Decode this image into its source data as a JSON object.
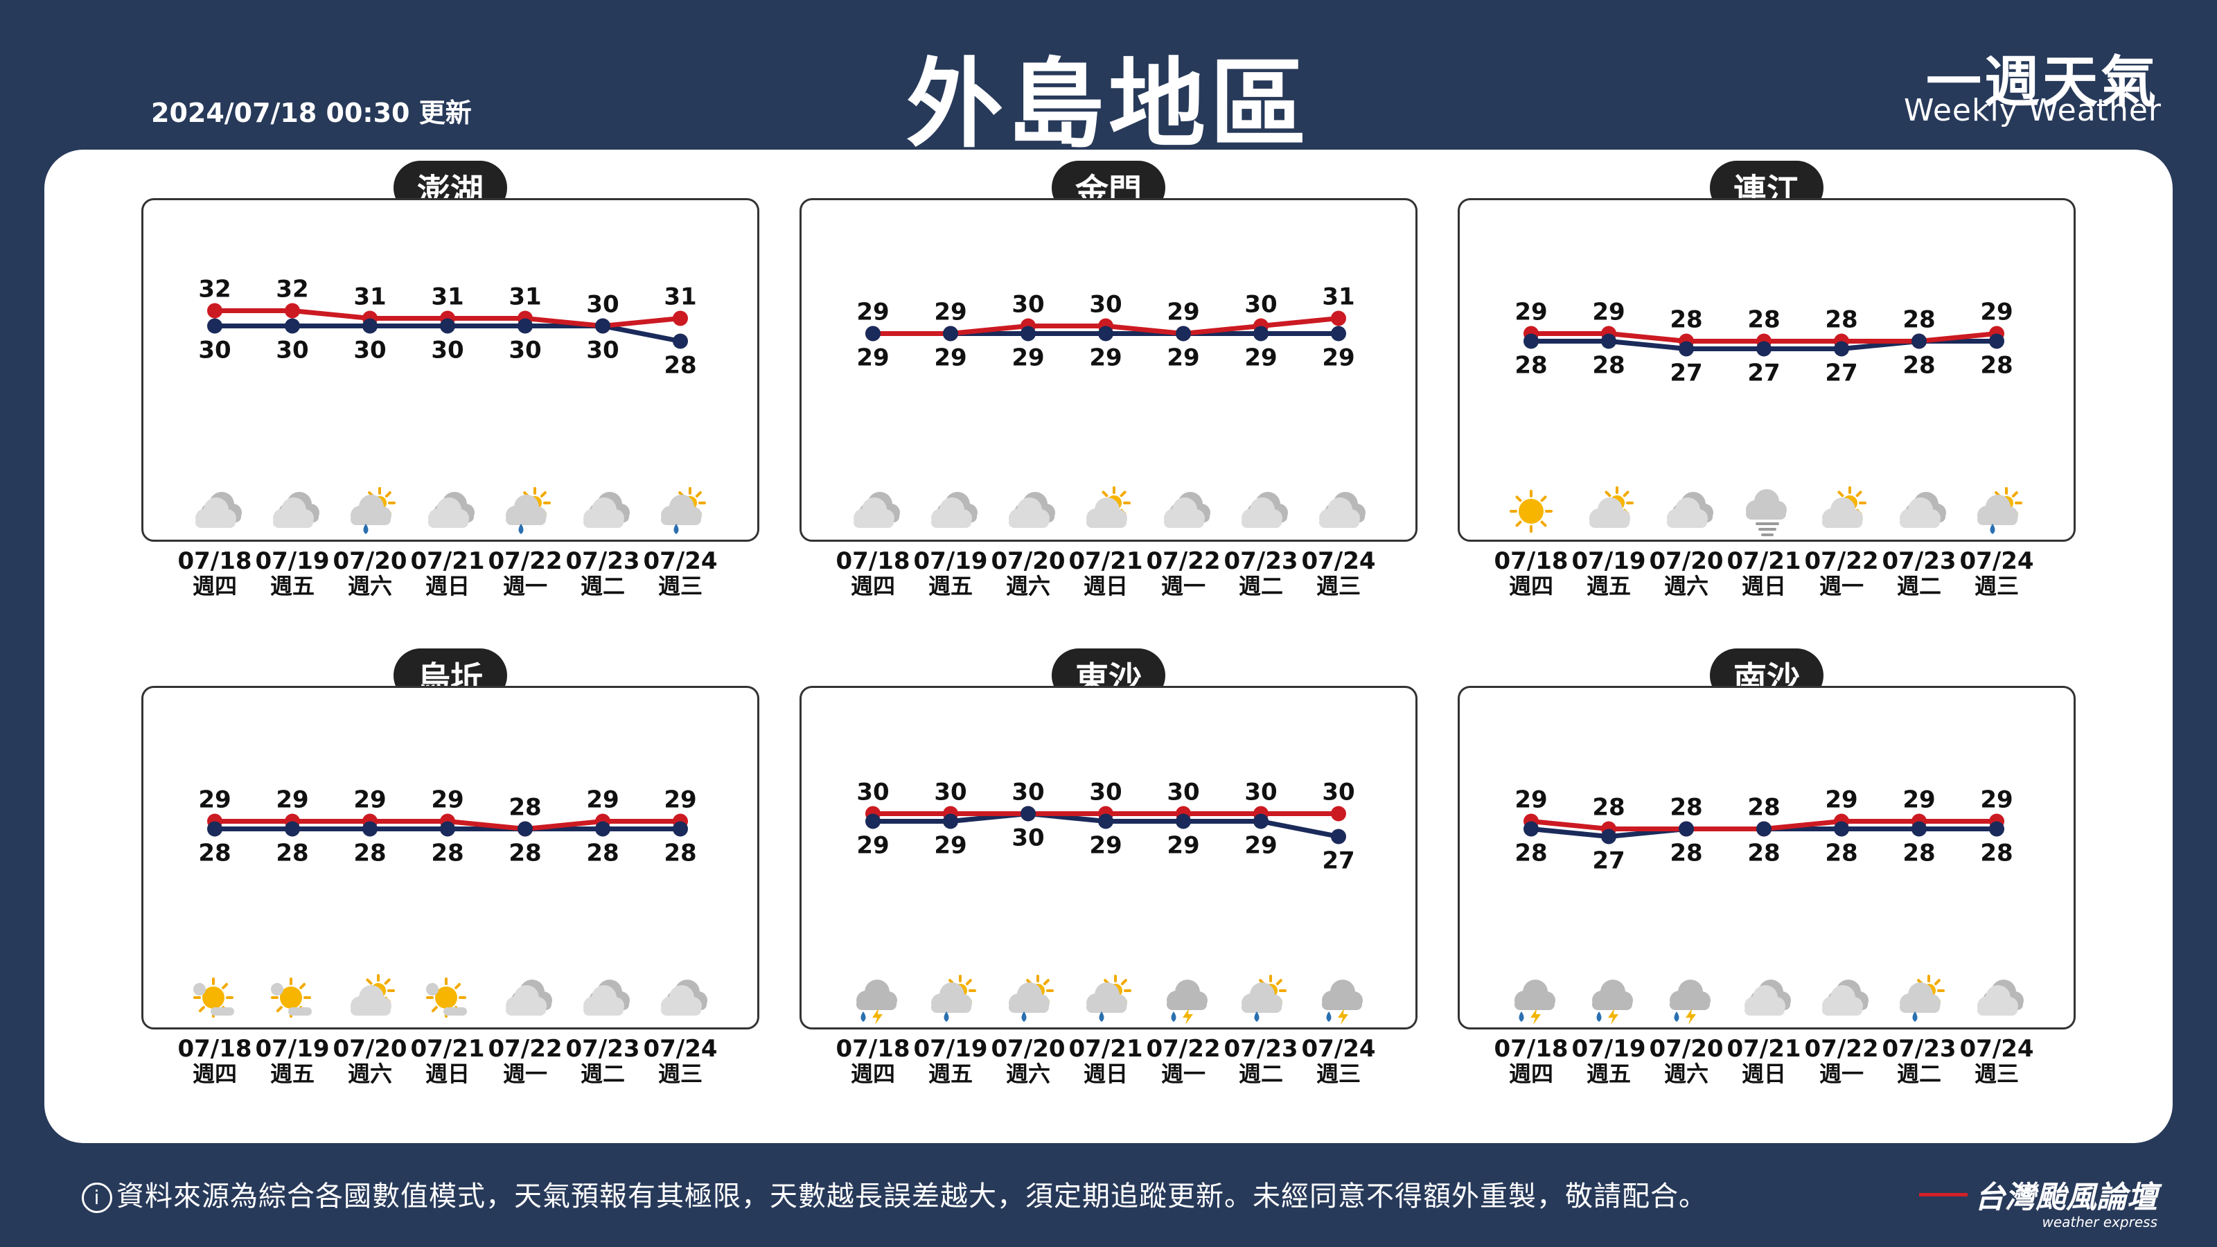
{
  "updated": "2024/07/18 00:30 更新",
  "title": "外島地區",
  "brand": {
    "cn": "一週天氣",
    "en": "Weekly Weather"
  },
  "footer": {
    "info_icon": "i",
    "text": "資料來源為綜合各國數值模式，天氣預報有其極限，天數越長誤差越大，須定期追蹤更新。未經同意不得額外重製，敬請配合。",
    "logo_cn": "台灣颱風論壇",
    "logo_en": "weather express"
  },
  "colors": {
    "high": "#cc1a22",
    "low": "#1a2a5a",
    "bg": "#283a5a"
  },
  "dates": [
    "07/18",
    "07/19",
    "07/20",
    "07/21",
    "07/22",
    "07/23",
    "07/24"
  ],
  "weekdays": [
    "週四",
    "週五",
    "週六",
    "週日",
    "週一",
    "週二",
    "週三"
  ],
  "chart_data": [
    {
      "type": "line",
      "title": "澎湖",
      "categories": [
        "07/18",
        "07/19",
        "07/20",
        "07/21",
        "07/22",
        "07/23",
        "07/24"
      ],
      "series": [
        {
          "values": [
            32,
            32,
            31,
            31,
            31,
            30,
            31
          ]
        },
        {
          "values": [
            30,
            30,
            30,
            30,
            30,
            30,
            28
          ]
        }
      ],
      "icons": [
        "cloudy",
        "cloudy",
        "partly-sunny-rain",
        "cloudy",
        "partly-sunny-rain",
        "cloudy",
        "partly-sunny-rain"
      ]
    },
    {
      "type": "line",
      "title": "金門",
      "categories": [
        "07/18",
        "07/19",
        "07/20",
        "07/21",
        "07/22",
        "07/23",
        "07/24"
      ],
      "series": [
        {
          "values": [
            29,
            29,
            30,
            30,
            29,
            30,
            31
          ]
        },
        {
          "values": [
            29,
            29,
            29,
            29,
            29,
            29,
            29
          ]
        }
      ],
      "icons": [
        "cloudy",
        "cloudy",
        "cloudy",
        "partly-sunny",
        "cloudy",
        "cloudy",
        "cloudy"
      ]
    },
    {
      "type": "line",
      "title": "連江",
      "categories": [
        "07/18",
        "07/19",
        "07/20",
        "07/21",
        "07/22",
        "07/23",
        "07/24"
      ],
      "series": [
        {
          "values": [
            29,
            29,
            28,
            28,
            28,
            28,
            29
          ]
        },
        {
          "values": [
            28,
            28,
            27,
            27,
            27,
            28,
            28
          ]
        }
      ],
      "icons": [
        "sunny",
        "partly-sunny",
        "cloudy",
        "fog",
        "partly-sunny",
        "cloudy",
        "partly-sunny-rain"
      ]
    },
    {
      "type": "line",
      "title": "烏坵",
      "categories": [
        "07/18",
        "07/19",
        "07/20",
        "07/21",
        "07/22",
        "07/23",
        "07/24"
      ],
      "series": [
        {
          "values": [
            29,
            29,
            29,
            29,
            28,
            29,
            29
          ]
        },
        {
          "values": [
            28,
            28,
            28,
            28,
            28,
            28,
            28
          ]
        }
      ],
      "icons": [
        "sunny-cloud",
        "sunny-cloud",
        "partly-sunny",
        "sunny-cloud",
        "cloudy",
        "cloudy",
        "cloudy"
      ]
    },
    {
      "type": "line",
      "title": "東沙",
      "categories": [
        "07/18",
        "07/19",
        "07/20",
        "07/21",
        "07/22",
        "07/23",
        "07/24"
      ],
      "series": [
        {
          "values": [
            30,
            30,
            30,
            30,
            30,
            30,
            30
          ]
        },
        {
          "values": [
            29,
            29,
            30,
            29,
            29,
            29,
            27
          ]
        }
      ],
      "icons": [
        "thunder-rain",
        "partly-sunny-rain",
        "partly-sunny-rain",
        "partly-sunny-rain",
        "thunder-rain",
        "partly-sunny-rain",
        "thunder-rain"
      ]
    },
    {
      "type": "line",
      "title": "南沙",
      "categories": [
        "07/18",
        "07/19",
        "07/20",
        "07/21",
        "07/22",
        "07/23",
        "07/24"
      ],
      "series": [
        {
          "values": [
            29,
            28,
            28,
            28,
            29,
            29,
            29
          ]
        },
        {
          "values": [
            28,
            27,
            28,
            28,
            28,
            28,
            28
          ]
        }
      ],
      "icons": [
        "thunder-rain",
        "thunder-rain",
        "thunder-rain",
        "cloudy",
        "cloudy",
        "partly-sunny-rain",
        "cloudy"
      ]
    }
  ]
}
